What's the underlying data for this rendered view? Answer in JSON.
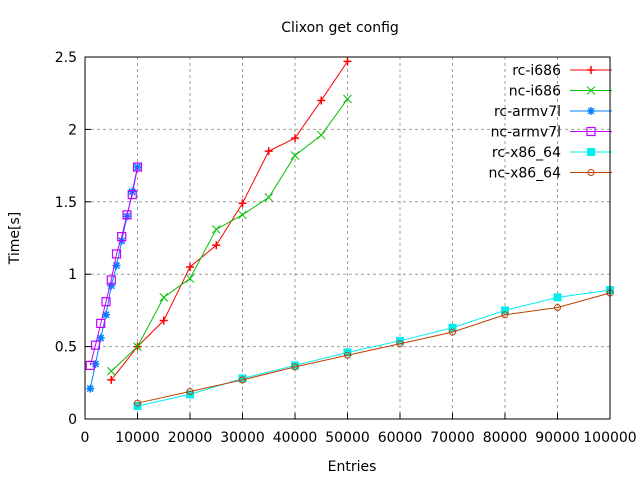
{
  "chart_data": {
    "type": "line",
    "title": "Clixon get config",
    "xlabel": "Entries",
    "ylabel": "Time[s]",
    "xlim": [
      0,
      100000
    ],
    "ylim": [
      0,
      2.5
    ],
    "xticks": [
      0,
      10000,
      20000,
      30000,
      40000,
      50000,
      60000,
      70000,
      80000,
      90000,
      100000
    ],
    "yticks": [
      0,
      0.5,
      1,
      1.5,
      2,
      2.5
    ],
    "grid": true,
    "legend_position": "top-right",
    "series": [
      {
        "name": "rc-i686",
        "color": "#ff0000",
        "marker": "plus",
        "x": [
          5000,
          10000,
          15000,
          20000,
          25000,
          30000,
          35000,
          40000,
          45000,
          50000
        ],
        "y": [
          0.27,
          0.5,
          0.68,
          1.05,
          1.2,
          1.49,
          1.85,
          1.94,
          2.2,
          2.47
        ]
      },
      {
        "name": "nc-i686",
        "color": "#00c000",
        "marker": "cross",
        "x": [
          5000,
          10000,
          15000,
          20000,
          25000,
          30000,
          35000,
          40000,
          45000,
          50000
        ],
        "y": [
          0.33,
          0.5,
          0.84,
          0.97,
          1.31,
          1.41,
          1.53,
          1.82,
          1.96,
          2.21
        ]
      },
      {
        "name": "rc-armv7l",
        "color": "#0080ff",
        "marker": "star",
        "x": [
          1000,
          2000,
          3000,
          4000,
          5000,
          6000,
          7000,
          8000,
          9000,
          10000
        ],
        "y": [
          0.21,
          0.38,
          0.56,
          0.72,
          0.92,
          1.06,
          1.23,
          1.4,
          1.57,
          1.74
        ]
      },
      {
        "name": "nc-armv7l",
        "color": "#c000ff",
        "marker": "square",
        "x": [
          1000,
          2000,
          3000,
          4000,
          5000,
          6000,
          7000,
          8000,
          9000,
          10000
        ],
        "y": [
          0.37,
          0.51,
          0.66,
          0.81,
          0.96,
          1.14,
          1.26,
          1.41,
          1.55,
          1.74
        ]
      },
      {
        "name": "rc-x86_64",
        "color": "#00eeee",
        "marker": "filled-square",
        "x": [
          10000,
          20000,
          30000,
          40000,
          50000,
          60000,
          70000,
          80000,
          90000,
          100000
        ],
        "y": [
          0.09,
          0.17,
          0.28,
          0.37,
          0.46,
          0.54,
          0.63,
          0.75,
          0.84,
          0.89
        ]
      },
      {
        "name": "nc-x86_64",
        "color": "#c04000",
        "marker": "circle",
        "x": [
          10000,
          20000,
          30000,
          40000,
          50000,
          60000,
          70000,
          80000,
          90000,
          100000
        ],
        "y": [
          0.11,
          0.19,
          0.27,
          0.36,
          0.44,
          0.52,
          0.6,
          0.72,
          0.77,
          0.87
        ]
      }
    ]
  }
}
